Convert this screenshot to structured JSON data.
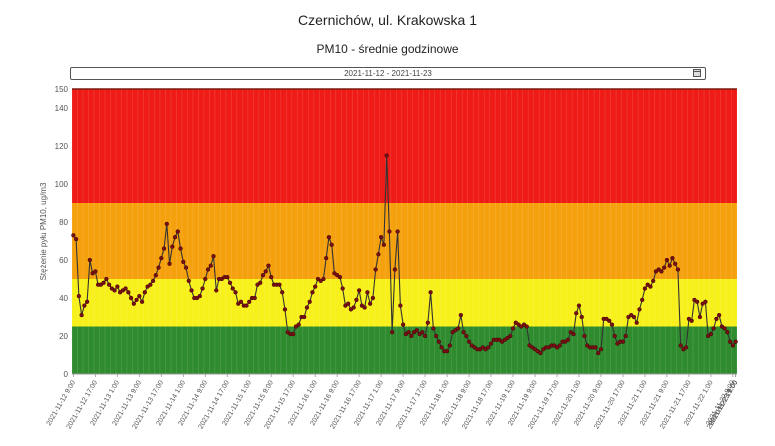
{
  "header": {
    "title": "Czernichów, ul. Krakowska 1",
    "subtitle": "PM10 - średnie godzinowe"
  },
  "date_range": {
    "value": "2021-11-12  -  2021-11-23"
  },
  "colors": {
    "green": "#2e8b2e",
    "yellow": "#f7f01a",
    "orange": "#f5a00d",
    "red": "#ee1b16",
    "line": "#333333",
    "point": "#7a0f14"
  },
  "chart_data": {
    "type": "line",
    "title": "",
    "xlabel": "",
    "ylabel": "Stężenie pyłu PM10, ug/m3",
    "ylim": [
      0,
      150
    ],
    "yticks": [
      0,
      20,
      40,
      60,
      80,
      100,
      120,
      140,
      150
    ],
    "bands": [
      {
        "from": 0,
        "to": 25,
        "color": "green"
      },
      {
        "from": 25,
        "to": 30,
        "color": "yellow"
      },
      {
        "from": 30,
        "to": 50,
        "color": "yellow"
      },
      {
        "from": 50,
        "to": 90,
        "color": "orange"
      },
      {
        "from": 90,
        "to": 150,
        "color": "red"
      }
    ],
    "x_tick_labels": [
      "2021-11-12 9:00",
      "2021-11-12 17:00",
      "2021-11-13 1:00",
      "2021-11-13 9:00",
      "2021-11-13 17:00",
      "2021-11-14 1:00",
      "2021-11-14 9:00",
      "2021-11-14 17:00",
      "2021-11-15 1:00",
      "2021-11-15 9:00",
      "2021-11-15 17:00",
      "2021-11-16 1:00",
      "2021-11-16 9:00",
      "2021-11-16 17:00",
      "2021-11-17 1:00",
      "2021-11-17 9:00",
      "2021-11-17 17:00",
      "2021-11-18 1:00",
      "2021-11-18 9:00",
      "2021-11-18 17:00",
      "2021-11-19 1:00",
      "2021-11-19 9:00",
      "2021-11-19 17:00",
      "2021-11-20 1:00",
      "2021-11-20 9:00",
      "2021-11-20 17:00",
      "2021-11-21 1:00",
      "2021-11-21 9:00",
      "2021-11-21 17:00",
      "2021-11-22 1:00",
      "2021-11-22 9:00",
      "2021-11-22 17:00",
      "2021-11-23 1:00",
      "2021-11-23 9:00"
    ],
    "values": [
      73,
      71,
      41,
      31,
      36,
      38,
      60,
      53,
      54,
      47,
      47,
      48,
      50,
      47,
      45,
      44,
      46,
      43,
      44,
      45,
      43,
      40,
      37,
      39,
      41,
      38,
      43,
      46,
      47,
      49,
      52,
      56,
      61,
      66,
      79,
      58,
      67,
      72,
      75,
      66,
      59,
      56,
      49,
      44,
      40,
      40,
      41,
      45,
      50,
      55,
      57,
      62,
      44,
      50,
      50,
      51,
      51,
      48,
      45,
      43,
      37,
      38,
      36,
      36,
      38,
      40,
      40,
      47,
      48,
      52,
      54,
      57,
      51,
      47,
      47,
      47,
      43,
      34,
      22,
      21,
      21,
      25,
      26,
      30,
      30,
      35,
      38,
      43,
      46,
      50,
      49,
      50,
      61,
      72,
      68,
      53,
      52,
      51,
      45,
      36,
      37,
      34,
      35,
      39,
      44,
      36,
      35,
      43,
      37,
      40,
      55,
      63,
      72,
      68,
      115,
      75,
      22,
      55,
      75,
      36,
      26,
      21,
      22,
      20,
      22,
      23,
      21,
      22,
      20,
      27,
      43,
      24,
      20,
      17,
      14,
      12,
      12,
      15,
      22,
      23,
      24,
      31,
      22,
      20,
      17,
      15,
      14,
      13,
      13,
      14,
      13,
      14,
      16,
      18,
      18,
      18,
      17,
      18,
      19,
      20,
      24,
      27,
      26,
      25,
      26,
      25,
      15,
      14,
      13,
      12,
      11,
      13,
      14,
      14,
      15,
      15,
      14,
      15,
      17,
      17,
      18,
      22,
      21,
      32,
      36,
      30,
      20,
      15,
      14,
      14,
      14,
      11,
      13,
      29,
      29,
      28,
      26,
      20,
      16,
      17,
      17,
      20,
      30,
      31,
      30,
      27,
      34,
      39,
      45,
      47,
      46,
      49,
      54,
      55,
      54,
      56,
      60,
      57,
      61,
      58,
      55,
      15,
      13,
      14,
      29,
      28,
      39,
      38,
      30,
      37,
      38,
      20,
      21,
      24,
      29,
      31,
      25,
      24,
      22,
      17,
      15,
      17
    ]
  }
}
